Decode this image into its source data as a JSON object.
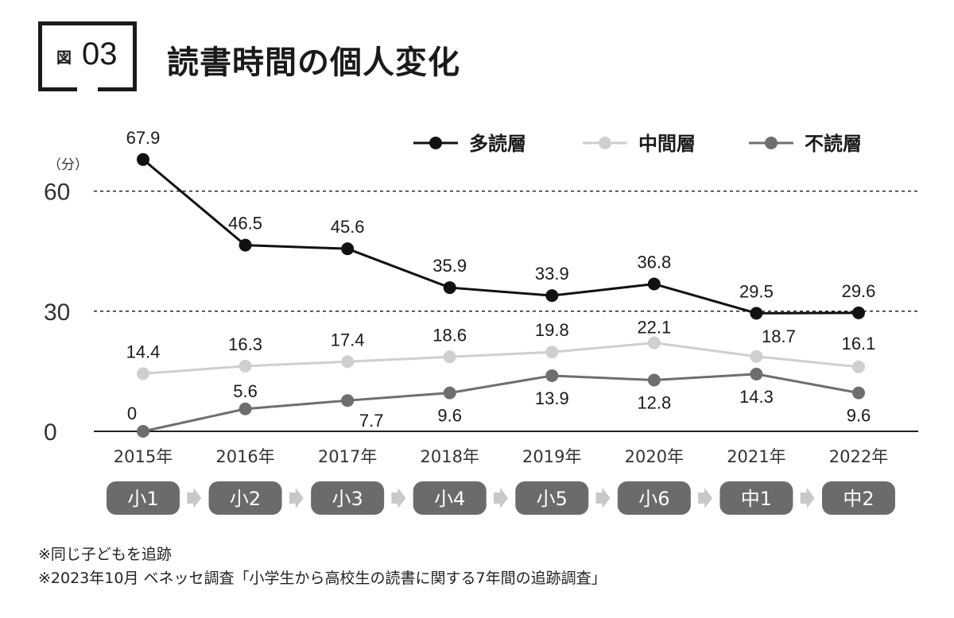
{
  "figure": {
    "label": "図",
    "number": "03",
    "title": "読書時間の個人変化"
  },
  "chart_data": {
    "type": "line",
    "title": "読書時間の個人変化",
    "ylabel": "（分）",
    "ylim": [
      0,
      70
    ],
    "yticks": [
      0,
      30,
      60
    ],
    "gridlines": [
      30,
      60
    ],
    "categories": [
      "2015年",
      "2016年",
      "2017年",
      "2018年",
      "2019年",
      "2020年",
      "2021年",
      "2022年"
    ],
    "grades": [
      "小1",
      "小2",
      "小3",
      "小4",
      "小5",
      "小6",
      "中1",
      "中2"
    ],
    "series": [
      {
        "name": "多読層",
        "color": "#111111",
        "labels": [
          "67.9",
          "46.5",
          "45.6",
          "35.9",
          "33.9",
          "36.8",
          "29.5",
          "29.6"
        ],
        "values": [
          67.9,
          46.5,
          45.6,
          35.9,
          33.9,
          36.8,
          29.5,
          29.6
        ]
      },
      {
        "name": "中間層",
        "color": "#cfcfcf",
        "labels": [
          "14.4",
          "16.3",
          "17.4",
          "18.6",
          "19.8",
          "22.1",
          "18.7",
          "16.1"
        ],
        "values": [
          14.4,
          16.3,
          17.4,
          18.6,
          19.8,
          22.1,
          18.7,
          16.1
        ]
      },
      {
        "name": "不読層",
        "color": "#6e6e6e",
        "labels": [
          "0",
          "5.6",
          "7.7",
          "9.6",
          "13.9",
          "12.8",
          "14.3",
          "9.6"
        ],
        "values": [
          0,
          5.6,
          7.7,
          9.6,
          13.9,
          12.8,
          14.3,
          9.6
        ]
      }
    ],
    "legend_position": "top-right"
  },
  "notes": [
    "※同じ子どもを追跡",
    "※2023年10月 ベネッセ調査「小学生から高校生の読書に関する7年間の追跡調査」"
  ]
}
